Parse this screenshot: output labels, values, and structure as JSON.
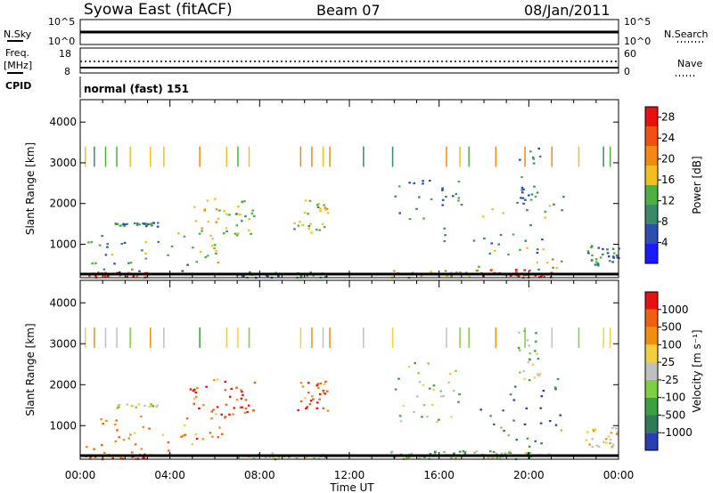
{
  "header": {
    "station": "Syowa East (fitACF)",
    "beam": "Beam 07",
    "date": "08/Jan/2011"
  },
  "params_panel": {
    "nsky_label": "N.Sky",
    "nsky_ticks": [
      "10^5",
      "10^0"
    ],
    "nsearch_label": "N.Search",
    "freq_label_1": "Freq.",
    "freq_label_2": "[MHz]",
    "freq_ticks": [
      "18",
      "8"
    ],
    "nave_ticks": [
      "60",
      "0"
    ],
    "nave_label": "Nave",
    "cpid_label": "CPID",
    "cpid_value": "normal (fast) 151"
  },
  "chart_data": [
    {
      "type": "heatmap",
      "title": "Power",
      "xlabel": "Time UT",
      "ylabel": "Slant Range [km]",
      "colorbar_label": "Power [dB]",
      "x_ticks": [
        "00:00",
        "04:00",
        "08:00",
        "12:00",
        "16:00",
        "20:00",
        "00:00"
      ],
      "y_ticks": [
        1000,
        2000,
        3000,
        4000
      ],
      "xlim_hours": [
        0,
        24
      ],
      "ylim_km": [
        180,
        4550
      ],
      "colorbar_ticks": [
        4,
        8,
        12,
        16,
        20,
        24,
        28
      ],
      "colorbar_range": [
        0,
        30
      ],
      "colors": [
        "#1a1aff",
        "#2a4fb0",
        "#3a8a6a",
        "#4fb040",
        "#f0c020",
        "#f08a10",
        "#f05010",
        "#e81010"
      ],
      "echo_regions": [
        {
          "t0": 0.2,
          "t1": 3.2,
          "r0": 200,
          "r1": 330,
          "level": 0.85
        },
        {
          "t0": 0.2,
          "t1": 5.0,
          "r0": 330,
          "r1": 1300,
          "level": 0.35
        },
        {
          "t0": 1.5,
          "t1": 3.5,
          "r0": 1450,
          "r1": 1550,
          "level": 0.3
        },
        {
          "t0": 4.8,
          "t1": 6.3,
          "r0": 500,
          "r1": 2200,
          "level": 0.55
        },
        {
          "t0": 6.3,
          "t1": 7.8,
          "r0": 1200,
          "r1": 2100,
          "level": 0.45
        },
        {
          "t0": 9.5,
          "t1": 11.0,
          "r0": 1300,
          "r1": 2100,
          "level": 0.5
        },
        {
          "t0": 7.0,
          "t1": 11.0,
          "r0": 200,
          "r1": 350,
          "level": 0.3
        },
        {
          "t0": 13.8,
          "t1": 17.8,
          "r0": 200,
          "r1": 400,
          "level": 0.55
        },
        {
          "t0": 14.0,
          "t1": 17.0,
          "r0": 1100,
          "r1": 2600,
          "level": 0.3
        },
        {
          "t0": 17.8,
          "t1": 21.0,
          "r0": 200,
          "r1": 400,
          "level": 0.9
        },
        {
          "t0": 17.5,
          "t1": 21.5,
          "r0": 400,
          "r1": 2200,
          "level": 0.4
        },
        {
          "t0": 19.5,
          "t1": 20.5,
          "r0": 2000,
          "r1": 3400,
          "level": 0.3
        },
        {
          "t0": 22.5,
          "t1": 24.0,
          "r0": 500,
          "r1": 1000,
          "level": 0.3
        }
      ],
      "top_stripes": {
        "r0": 2900,
        "r1": 3400,
        "times": [
          0.2,
          0.6,
          1.1,
          1.6,
          2.2,
          3.1,
          3.7,
          5.3,
          6.5,
          7.0,
          7.5,
          9.8,
          10.3,
          10.8,
          11.1,
          12.6,
          13.9,
          16.3,
          16.9,
          17.3,
          18.5,
          19.8,
          21.0,
          22.2,
          23.3,
          23.6
        ]
      }
    },
    {
      "type": "heatmap",
      "title": "Velocity",
      "xlabel": "Time UT",
      "ylabel": "Slant Range [km]",
      "colorbar_label": "Velocity [m s⁻¹]",
      "x_ticks": [
        "00:00",
        "04:00",
        "08:00",
        "12:00",
        "16:00",
        "20:00",
        "00:00"
      ],
      "y_ticks": [
        1000,
        2000,
        3000,
        4000
      ],
      "xlim_hours": [
        0,
        24
      ],
      "ylim_km": [
        180,
        4550
      ],
      "colorbar_ticks": [
        "1000",
        "500",
        "100",
        "25",
        "-25",
        "-100",
        "-500",
        "-1000"
      ],
      "colors": [
        "#2a3fb0",
        "#2f7a5a",
        "#3aa040",
        "#7fd040",
        "#c0c0c0",
        "#f0d040",
        "#f09010",
        "#f06010",
        "#e81010"
      ],
      "echo_regions": [
        {
          "t0": 0.2,
          "t1": 3.2,
          "r0": 200,
          "r1": 330,
          "level": 0.8
        },
        {
          "t0": 0.2,
          "t1": 5.0,
          "r0": 330,
          "r1": 1300,
          "level": 0.75
        },
        {
          "t0": 1.5,
          "t1": 3.5,
          "r0": 1450,
          "r1": 1550,
          "level": 0.45
        },
        {
          "t0": 4.8,
          "t1": 6.3,
          "r0": 500,
          "r1": 2200,
          "level": 0.8
        },
        {
          "t0": 6.3,
          "t1": 7.8,
          "r0": 1200,
          "r1": 2100,
          "level": 0.9
        },
        {
          "t0": 9.5,
          "t1": 11.0,
          "r0": 1300,
          "r1": 2100,
          "level": 0.8
        },
        {
          "t0": 7.0,
          "t1": 11.0,
          "r0": 200,
          "r1": 350,
          "level": 0.45
        },
        {
          "t0": 13.8,
          "t1": 17.8,
          "r0": 200,
          "r1": 400,
          "level": 0.35
        },
        {
          "t0": 14.0,
          "t1": 17.0,
          "r0": 1100,
          "r1": 2600,
          "level": 0.45
        },
        {
          "t0": 17.8,
          "t1": 21.0,
          "r0": 200,
          "r1": 400,
          "level": 0.4
        },
        {
          "t0": 17.5,
          "t1": 21.5,
          "r0": 400,
          "r1": 2200,
          "level": 0.2
        },
        {
          "t0": 19.5,
          "t1": 20.5,
          "r0": 2000,
          "r1": 3400,
          "level": 0.45
        },
        {
          "t0": 22.5,
          "t1": 24.0,
          "r0": 500,
          "r1": 1000,
          "level": 0.6
        }
      ],
      "top_stripes": {
        "r0": 2900,
        "r1": 3400,
        "times": [
          0.2,
          0.6,
          1.1,
          1.6,
          2.2,
          3.1,
          3.7,
          5.3,
          6.5,
          7.0,
          7.5,
          9.8,
          10.3,
          10.8,
          11.1,
          12.6,
          13.9,
          16.3,
          16.9,
          17.3,
          18.5,
          19.8,
          21.0,
          22.2,
          23.3,
          23.6
        ]
      }
    }
  ]
}
